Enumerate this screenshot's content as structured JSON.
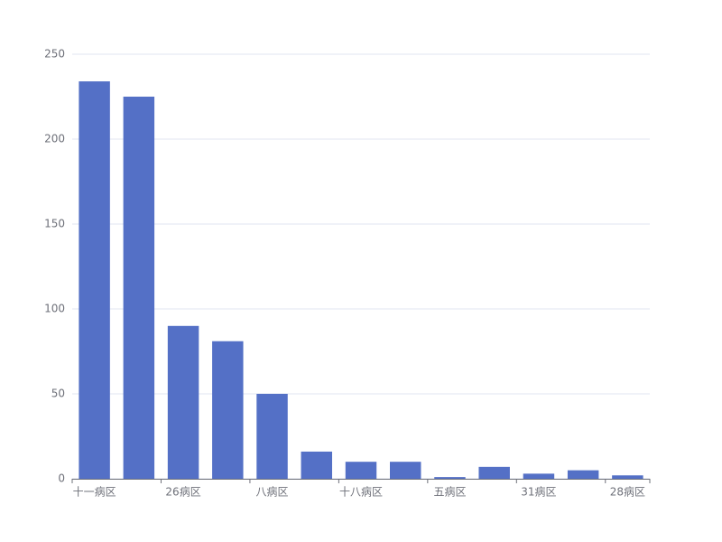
{
  "chart_data": {
    "type": "bar",
    "categories": [
      "十一病区",
      null,
      "26病区",
      null,
      "八病区",
      null,
      "十八病区",
      null,
      "五病区",
      null,
      "31病区",
      null,
      "28病区"
    ],
    "values": [
      234,
      225,
      90,
      81,
      50,
      16,
      10,
      10,
      1,
      7,
      3,
      5,
      2
    ],
    "color": "#5470c6",
    "ylim": [
      0,
      250
    ],
    "yticks": [
      0,
      50,
      100,
      150,
      200,
      250
    ],
    "grid": true
  }
}
